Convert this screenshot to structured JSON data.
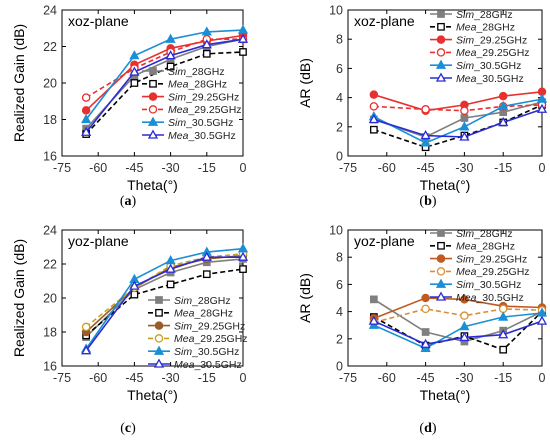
{
  "figure_captions": [
    "(a)",
    "(b)",
    "(c)",
    "(d)"
  ],
  "colors": {
    "sim28": "#7f7f7f",
    "mea28": "#000000",
    "sim2925": "#e8302f",
    "mea2925": "#e8302f",
    "sim305": "#1a8fd6",
    "mea305": "#2b2bd6",
    "sim2925_c": "#9a5a2a",
    "mea2925_c": "#c8a020",
    "sim2925_d": "#c05a20",
    "mea2925_d": "#d89038"
  },
  "legend": [
    "Sim_28GHz",
    "Mea_28GHz",
    "Sim_29.25GHz",
    "Mea_29.25GHz",
    "Sim_30.5GHz",
    "Mea_30.5GHz"
  ],
  "chart_data": [
    {
      "type": "line",
      "plane_label": "xoz-plane",
      "caption": "(a)",
      "xlabel": "Theta(°)",
      "ylabel": "Realized Gain (dB)",
      "xlim": [
        -75,
        0
      ],
      "ylim": [
        16,
        24
      ],
      "xticks": [
        -75,
        -60,
        -45,
        -30,
        -15,
        0
      ],
      "yticks": [
        16,
        18,
        20,
        22,
        24
      ],
      "x": [
        -65,
        -45,
        -30,
        -15,
        0
      ],
      "legend_position": "bottom-right",
      "series": [
        {
          "name": "Sim_28GHz",
          "values": [
            17.5,
            20.4,
            21.3,
            22.0,
            22.4
          ]
        },
        {
          "name": "Mea_28GHz",
          "values": [
            17.2,
            20.0,
            20.9,
            21.6,
            21.7
          ]
        },
        {
          "name": "Sim_29.25GHz",
          "values": [
            18.5,
            21.0,
            21.9,
            22.3,
            22.6
          ]
        },
        {
          "name": "Mea_29.25GHz",
          "values": [
            19.2,
            20.8,
            21.7,
            22.4,
            22.4
          ]
        },
        {
          "name": "Sim_30.5GHz",
          "values": [
            18.0,
            21.5,
            22.4,
            22.8,
            22.9
          ]
        },
        {
          "name": "Mea_30.5GHz",
          "values": [
            17.3,
            20.6,
            21.5,
            22.1,
            22.4
          ]
        }
      ]
    },
    {
      "type": "line",
      "plane_label": "xoz-plane",
      "caption": "(b)",
      "xlabel": "Theta(°)",
      "ylabel": "AR (dB)",
      "xlim": [
        -75,
        0
      ],
      "ylim": [
        0,
        10
      ],
      "xticks": [
        -75,
        -60,
        -45,
        -30,
        -15,
        0
      ],
      "yticks": [
        0,
        2,
        4,
        6,
        8,
        10
      ],
      "x": [
        -65,
        -45,
        -30,
        -15,
        0
      ],
      "legend_position": "top-right",
      "series": [
        {
          "name": "Sim_28GHz",
          "values": [
            2.5,
            1.3,
            2.6,
            3.0,
            3.7
          ]
        },
        {
          "name": "Mea_28GHz",
          "values": [
            1.8,
            0.6,
            1.4,
            2.3,
            3.5
          ]
        },
        {
          "name": "Sim_29.25GHz",
          "values": [
            4.2,
            3.1,
            3.5,
            4.1,
            4.4
          ]
        },
        {
          "name": "Mea_29.25GHz",
          "values": [
            3.4,
            3.2,
            3.1,
            3.4,
            3.5
          ]
        },
        {
          "name": "Sim_30.5GHz",
          "values": [
            2.7,
            0.9,
            2.0,
            3.4,
            3.9
          ]
        },
        {
          "name": "Mea_30.5GHz",
          "values": [
            2.5,
            1.4,
            1.3,
            2.3,
            3.2
          ]
        }
      ]
    },
    {
      "type": "line",
      "plane_label": "yoz-plane",
      "caption": "(c)",
      "xlabel": "Theta(°)",
      "ylabel": "Realized Gain (dB)",
      "xlim": [
        -75,
        0
      ],
      "ylim": [
        16,
        24
      ],
      "xticks": [
        -75,
        -60,
        -45,
        -30,
        -15,
        0
      ],
      "yticks": [
        16,
        18,
        20,
        22,
        24
      ],
      "x": [
        -65,
        -45,
        -30,
        -15,
        0
      ],
      "legend_position": "bottom-right",
      "series": [
        {
          "name": "Sim_28GHz",
          "values": [
            17.7,
            20.5,
            21.5,
            22.1,
            22.3
          ]
        },
        {
          "name": "Mea_28GHz",
          "values": [
            17.8,
            20.2,
            20.8,
            21.4,
            21.7
          ]
        },
        {
          "name": "Sim_29.25GHz",
          "values": [
            18.0,
            20.6,
            21.8,
            22.3,
            22.5
          ]
        },
        {
          "name": "Mea_29.25GHz",
          "values": [
            18.3,
            20.6,
            21.9,
            22.4,
            22.6
          ]
        },
        {
          "name": "Sim_30.5GHz",
          "values": [
            17.0,
            21.1,
            22.2,
            22.7,
            22.9
          ]
        },
        {
          "name": "Mea_30.5GHz",
          "values": [
            16.9,
            20.7,
            21.7,
            22.4,
            22.4
          ]
        }
      ]
    },
    {
      "type": "line",
      "plane_label": "yoz-plane",
      "caption": "(d)",
      "xlabel": "Theta(°)",
      "ylabel": "AR (dB)",
      "xlim": [
        -75,
        0
      ],
      "ylim": [
        0,
        10
      ],
      "xticks": [
        -75,
        -60,
        -45,
        -30,
        -15,
        0
      ],
      "yticks": [
        0,
        2,
        4,
        6,
        8,
        10
      ],
      "x": [
        -65,
        -45,
        -30,
        -15,
        0
      ],
      "legend_position": "top-right",
      "series": [
        {
          "name": "Sim_28GHz",
          "values": [
            4.9,
            2.5,
            1.8,
            2.6,
            4.0
          ]
        },
        {
          "name": "Mea_28GHz",
          "values": [
            3.6,
            1.5,
            2.2,
            1.2,
            4.0
          ]
        },
        {
          "name": "Sim_29.25GHz",
          "values": [
            3.5,
            5.0,
            4.9,
            4.4,
            4.3
          ]
        },
        {
          "name": "Mea_29.25GHz",
          "values": [
            3.2,
            4.2,
            3.7,
            4.2,
            4.1
          ]
        },
        {
          "name": "Sim_30.5GHz",
          "values": [
            3.0,
            1.3,
            2.9,
            3.6,
            3.9
          ]
        },
        {
          "name": "Mea_30.5GHz",
          "values": [
            3.3,
            1.6,
            2.1,
            2.3,
            3.3
          ]
        }
      ]
    }
  ]
}
